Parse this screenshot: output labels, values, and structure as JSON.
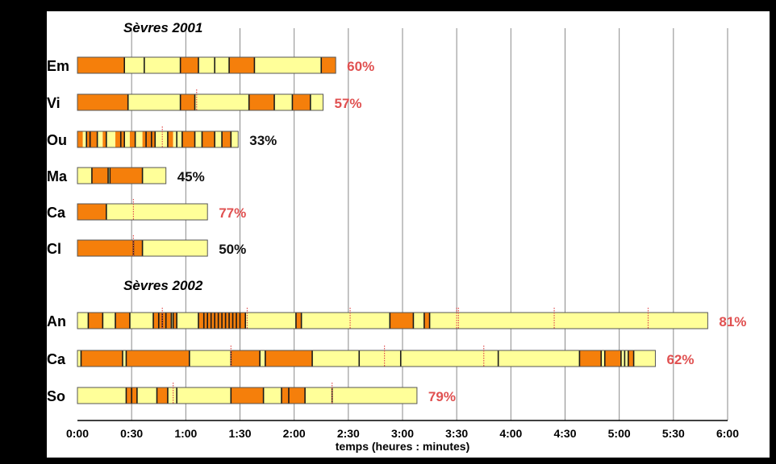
{
  "chart_data": {
    "type": "bar",
    "xlabel": "temps (heures : minutes)",
    "x_ticks": [
      "0:00",
      "0:30",
      "1:00",
      "1:30",
      "2:00",
      "2:30",
      "3:00",
      "3:30",
      "4:00",
      "4:30",
      "5:00",
      "5:30",
      "6:00"
    ],
    "xlim_minutes": [
      0,
      360
    ],
    "grid": "vertical",
    "colors": {
      "active": "#f57f0b",
      "inactive": "#ffff99",
      "divider": "#1a1a1a",
      "marker": "#e05050",
      "pct_red": "#e05050",
      "pct_black": "#111111",
      "background": "#ffffff",
      "frame": "#000000"
    },
    "groups": [
      {
        "title": "Sèvres 2001",
        "rows": [
          {
            "label": "Em",
            "total_minutes": 143,
            "percent": "60%",
            "percent_color": "red",
            "segments": [
              [
                0,
                26,
                "active"
              ],
              [
                26,
                57,
                "inactive"
              ],
              [
                57,
                67,
                "active"
              ],
              [
                67,
                84,
                "inactive"
              ],
              [
                84,
                98,
                "active"
              ],
              [
                98,
                135,
                "inactive"
              ],
              [
                135,
                143,
                "active"
              ]
            ],
            "dividers": [
              26,
              37,
              57,
              67,
              76,
              84,
              98,
              135
            ],
            "markers": []
          },
          {
            "label": "Vi",
            "total_minutes": 136,
            "percent": "57%",
            "percent_color": "red",
            "segments": [
              [
                0,
                28,
                "active"
              ],
              [
                28,
                57,
                "inactive"
              ],
              [
                57,
                65,
                "active"
              ],
              [
                65,
                95,
                "inactive"
              ],
              [
                95,
                109,
                "active"
              ],
              [
                109,
                119,
                "inactive"
              ],
              [
                119,
                129,
                "active"
              ],
              [
                129,
                136,
                "inactive"
              ]
            ],
            "dividers": [
              28,
              57,
              65,
              95,
              109,
              119,
              129
            ],
            "markers": [
              66
            ]
          },
          {
            "label": "Ou",
            "total_minutes": 89,
            "percent": "33%",
            "percent_color": "black",
            "segments": [
              [
                0,
                3,
                "active"
              ],
              [
                3,
                5,
                "inactive"
              ],
              [
                5,
                11,
                "active"
              ],
              [
                11,
                14,
                "inactive"
              ],
              [
                14,
                16,
                "active"
              ],
              [
                16,
                21,
                "inactive"
              ],
              [
                21,
                26,
                "active"
              ],
              [
                26,
                29,
                "inactive"
              ],
              [
                29,
                32,
                "active"
              ],
              [
                32,
                36,
                "inactive"
              ],
              [
                36,
                43,
                "active"
              ],
              [
                43,
                50,
                "inactive"
              ],
              [
                50,
                53,
                "active"
              ],
              [
                53,
                58,
                "inactive"
              ],
              [
                58,
                65,
                "active"
              ],
              [
                65,
                69,
                "inactive"
              ],
              [
                69,
                76,
                "active"
              ],
              [
                76,
                80,
                "inactive"
              ],
              [
                80,
                85,
                "active"
              ],
              [
                85,
                89,
                "inactive"
              ]
            ],
            "dividers": [
              5,
              7,
              11,
              16,
              24,
              26,
              32,
              38,
              41,
              43,
              50,
              55,
              58,
              65,
              69,
              76,
              80,
              85
            ],
            "markers": [
              47
            ]
          },
          {
            "label": "Ma",
            "total_minutes": 49,
            "percent": "45%",
            "percent_color": "black",
            "segments": [
              [
                0,
                8,
                "inactive"
              ],
              [
                8,
                17,
                "active"
              ],
              [
                17,
                18,
                "inactive"
              ],
              [
                18,
                36,
                "active"
              ],
              [
                36,
                49,
                "inactive"
              ]
            ],
            "dividers": [
              8,
              17,
              18,
              36
            ],
            "markers": []
          },
          {
            "label": "Ca",
            "total_minutes": 72,
            "percent": "77%",
            "percent_color": "red",
            "segments": [
              [
                0,
                16,
                "active"
              ],
              [
                16,
                72,
                "inactive"
              ]
            ],
            "dividers": [
              16
            ],
            "markers": [
              31
            ]
          },
          {
            "label": "Cl",
            "total_minutes": 72,
            "percent": "50%",
            "percent_color": "black",
            "segments": [
              [
                0,
                36,
                "active"
              ],
              [
                36,
                72,
                "inactive"
              ]
            ],
            "dividers": [
              31,
              36
            ],
            "markers": [
              31
            ]
          }
        ]
      },
      {
        "title": "Sèvres 2002",
        "rows": [
          {
            "label": "An",
            "total_minutes": 349,
            "percent": "81%",
            "percent_color": "red",
            "segments": [
              [
                0,
                6,
                "inactive"
              ],
              [
                6,
                14,
                "active"
              ],
              [
                14,
                21,
                "inactive"
              ],
              [
                21,
                29,
                "active"
              ],
              [
                29,
                42,
                "inactive"
              ],
              [
                42,
                52,
                "active"
              ],
              [
                52,
                53,
                "inactive"
              ],
              [
                53,
                55,
                "active"
              ],
              [
                55,
                67,
                "inactive"
              ],
              [
                67,
                93,
                "active"
              ],
              [
                93,
                121,
                "inactive"
              ],
              [
                121,
                124,
                "active"
              ],
              [
                124,
                173,
                "inactive"
              ],
              [
                173,
                186,
                "active"
              ],
              [
                186,
                192,
                "inactive"
              ],
              [
                192,
                195,
                "active"
              ],
              [
                195,
                349,
                "inactive"
              ]
            ],
            "dividers": [
              6,
              14,
              21,
              29,
              42,
              45,
              47,
              49,
              52,
              53,
              55,
              67,
              70,
              72,
              74,
              76,
              78,
              80,
              82,
              84,
              86,
              88,
              90,
              93,
              121,
              124,
              173,
              186,
              192,
              195
            ],
            "markers": [
              47,
              94,
              151,
              211,
              210,
              264,
              316
            ]
          },
          {
            "label": "Ca",
            "total_minutes": 320,
            "percent": "62%",
            "percent_color": "red",
            "segments": [
              [
                0,
                2,
                "inactive"
              ],
              [
                2,
                25,
                "active"
              ],
              [
                25,
                27,
                "inactive"
              ],
              [
                27,
                62,
                "active"
              ],
              [
                62,
                85,
                "inactive"
              ],
              [
                85,
                101,
                "active"
              ],
              [
                101,
                104,
                "inactive"
              ],
              [
                104,
                130,
                "active"
              ],
              [
                130,
                156,
                "inactive"
              ],
              [
                156,
                179,
                "inactive"
              ],
              [
                179,
                233,
                "inactive"
              ],
              [
                233,
                278,
                "inactive"
              ],
              [
                278,
                290,
                "active"
              ],
              [
                290,
                292,
                "inactive"
              ],
              [
                292,
                301,
                "active"
              ],
              [
                301,
                305,
                "inactive"
              ],
              [
                305,
                308,
                "active"
              ],
              [
                308,
                320,
                "inactive"
              ]
            ],
            "dividers": [
              2,
              25,
              27,
              62,
              85,
              101,
              104,
              130,
              156,
              179,
              233,
              278,
              290,
              292,
              301,
              303,
              305,
              308
            ],
            "markers": [
              85,
              170,
              225
            ]
          },
          {
            "label": "So",
            "total_minutes": 188,
            "percent": "79%",
            "percent_color": "red",
            "segments": [
              [
                0,
                27,
                "inactive"
              ],
              [
                27,
                33,
                "active"
              ],
              [
                33,
                44,
                "inactive"
              ],
              [
                44,
                50,
                "active"
              ],
              [
                50,
                55,
                "inactive"
              ],
              [
                55,
                85,
                "inactive"
              ],
              [
                85,
                103,
                "active"
              ],
              [
                103,
                113,
                "inactive"
              ],
              [
                113,
                126,
                "active"
              ],
              [
                126,
                188,
                "inactive"
              ]
            ],
            "dividers": [
              27,
              30,
              33,
              44,
              50,
              55,
              85,
              103,
              113,
              117,
              126,
              141
            ],
            "markers": [
              53,
              141
            ]
          }
        ]
      }
    ]
  }
}
